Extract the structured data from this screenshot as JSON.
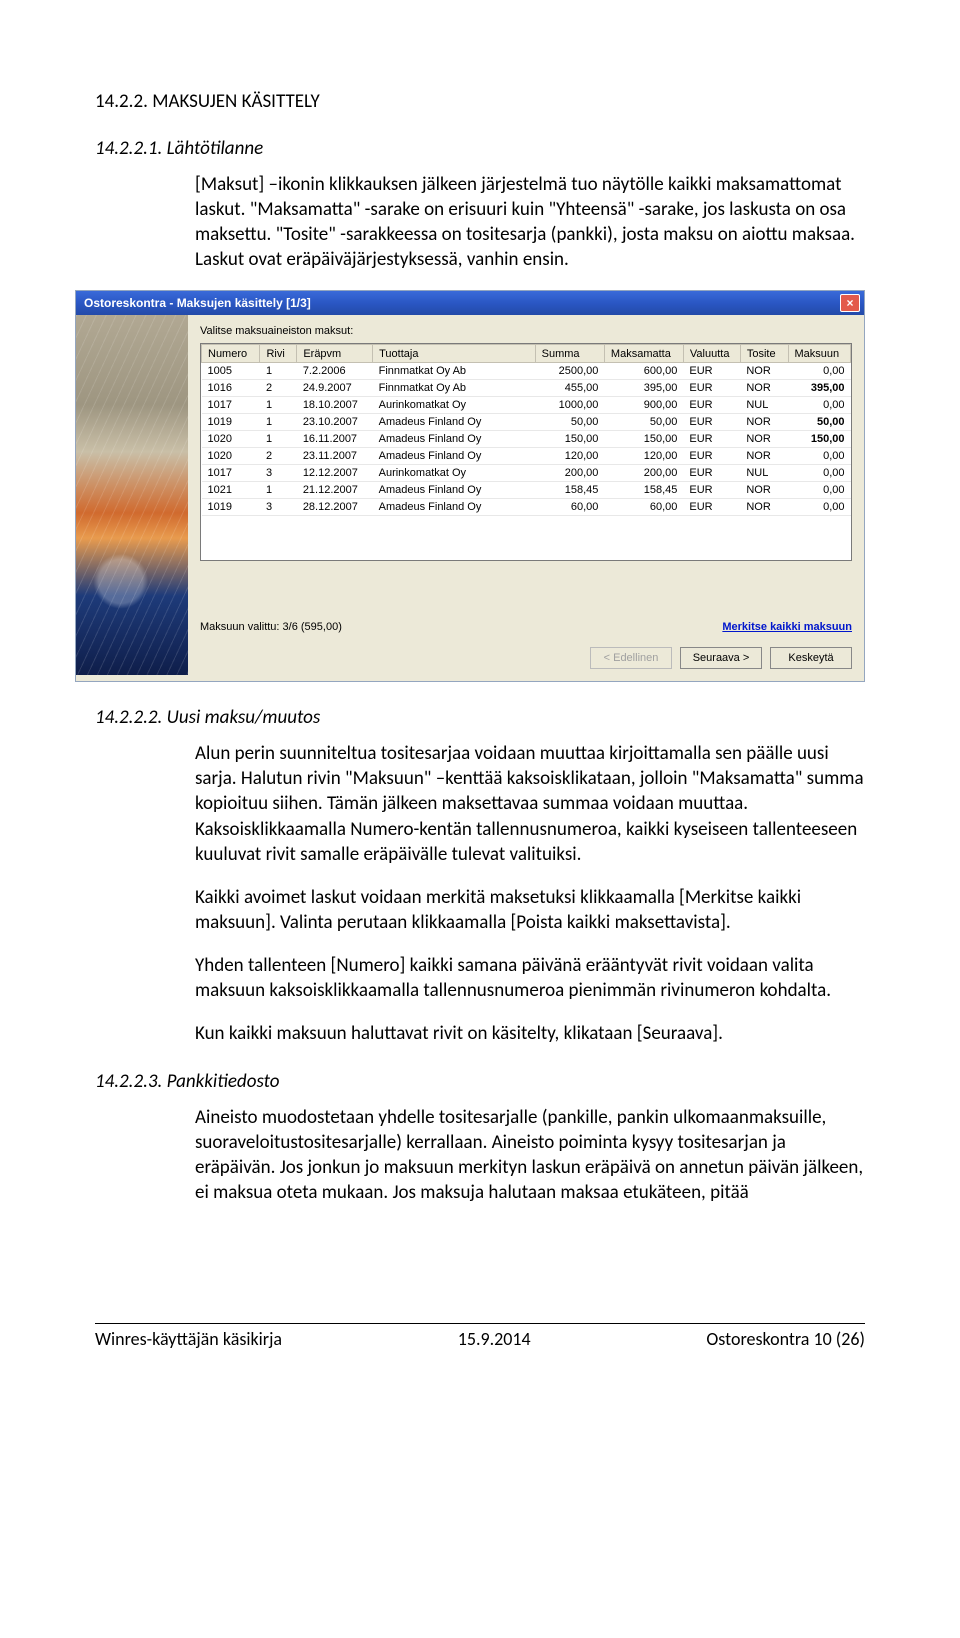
{
  "headings": {
    "h3a": "14.2.2. MAKSUJEN KÄSITTELY",
    "h4a": "14.2.2.1. Lähtötilanne",
    "h4b": "14.2.2.2. Uusi maksu/muutos",
    "h4c": "14.2.2.3. Pankkitiedosto"
  },
  "paras": {
    "p1": "[Maksut] –ikonin klikkauksen jälkeen järjestelmä tuo näytölle kaikki maksamattomat laskut. \"Maksamatta\" -sarake on erisuuri kuin \"Yhteensä\" -sarake, jos laskusta on osa maksettu. \"Tosite\" -sarakkeessa on tositesarja (pankki), josta maksu on aiottu maksaa. Laskut ovat eräpäiväjärjestyksessä, vanhin ensin.",
    "p2": "Alun perin suunniteltua tositesarjaa voidaan muuttaa kirjoittamalla sen päälle uusi sarja. Halutun rivin \"Maksuun\" –kenttää kaksoisklikataan, jolloin \"Maksamatta\" summa kopioituu siihen. Tämän jälkeen maksettavaa summaa voidaan muuttaa. Kaksoisklikkaamalla Numero-kentän tallennusnumeroa, kaikki kyseiseen tallenteeseen kuuluvat rivit samalle eräpäivälle tulevat valituiksi.",
    "p3": "Kaikki avoimet laskut voidaan merkitä maksetuksi klikkaamalla [Merkitse kaikki maksuun]. Valinta perutaan klikkaamalla [Poista kaikki maksettavista].",
    "p4": "Yhden tallenteen [Numero] kaikki samana päivänä erääntyvät rivit voidaan valita maksuun kaksoisklikkaamalla tallennusnumeroa pienimmän rivinumeron kohdalta.",
    "p5": "Kun kaikki maksuun haluttavat rivit on käsitelty, klikataan [Seuraava].",
    "p6": "Aineisto muodostetaan yhdelle tositesarjalle (pankille, pankin ulkomaanmaksuille, suoraveloitustositesarjalle) kerrallaan. Aineisto poiminta kysyy tositesarjan ja eräpäivän. Jos jonkun jo maksuun merkityn laskun eräpäivä on annetun päivän jälkeen, ei maksua oteta mukaan. Jos maksuja halutaan maksaa etukäteen, pitää"
  },
  "window": {
    "title": "Ostoreskontra - Maksujen käsittely [1/3]",
    "label": "Valitse maksuaineiston maksut:",
    "columns": [
      "Numero",
      "Rivi",
      "Eräpvm",
      "Tuottaja",
      "Summa",
      "Maksamatta",
      "Valuutta",
      "Tosite",
      "Maksuun"
    ],
    "rows": [
      [
        "1005",
        "1",
        "7.2.2006",
        "Finnmatkat Oy Ab",
        "2500,00",
        "600,00",
        "EUR",
        "NOR",
        "0,00",
        false
      ],
      [
        "1016",
        "2",
        "24.9.2007",
        "Finnmatkat Oy Ab",
        "455,00",
        "395,00",
        "EUR",
        "NOR",
        "395,00",
        true
      ],
      [
        "1017",
        "1",
        "18.10.2007",
        "Aurinkomatkat Oy",
        "1000,00",
        "900,00",
        "EUR",
        "NUL",
        "0,00",
        false
      ],
      [
        "1019",
        "1",
        "23.10.2007",
        "Amadeus Finland Oy",
        "50,00",
        "50,00",
        "EUR",
        "NOR",
        "50,00",
        true
      ],
      [
        "1020",
        "1",
        "16.11.2007",
        "Amadeus Finland Oy",
        "150,00",
        "150,00",
        "EUR",
        "NOR",
        "150,00",
        true
      ],
      [
        "1020",
        "2",
        "23.11.2007",
        "Amadeus Finland Oy",
        "120,00",
        "120,00",
        "EUR",
        "NOR",
        "0,00",
        false
      ],
      [
        "1017",
        "3",
        "12.12.2007",
        "Aurinkomatkat Oy",
        "200,00",
        "200,00",
        "EUR",
        "NUL",
        "0,00",
        false
      ],
      [
        "1021",
        "1",
        "21.12.2007",
        "Amadeus Finland Oy",
        "158,45",
        "158,45",
        "EUR",
        "NOR",
        "0,00",
        false
      ],
      [
        "1019",
        "3",
        "28.12.2007",
        "Amadeus Finland Oy",
        "60,00",
        "60,00",
        "EUR",
        "NOR",
        "0,00",
        false
      ]
    ],
    "status": "Maksuun valittu: 3/6  (595,00)",
    "mark_all": "Merkitse kaikki maksuun",
    "btn_prev": "< Edellinen",
    "btn_next": "Seuraava >",
    "btn_cancel": "Keskeytä"
  },
  "footer": {
    "left": "Winres-käyttäjän käsikirja",
    "center": "15.9.2014",
    "right": "Ostoreskontra 10 (26)"
  }
}
